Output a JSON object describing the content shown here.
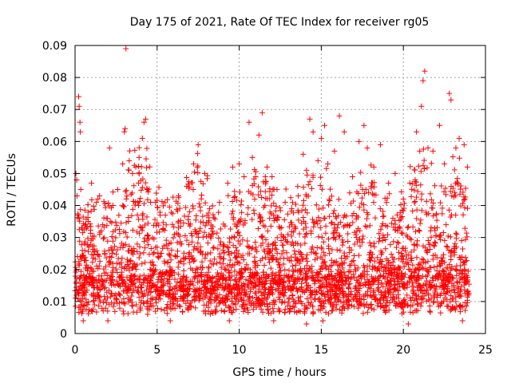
{
  "chart_data": {
    "type": "scatter",
    "title": "Day 175 of 2021, Rate Of TEC Index for receiver rg05",
    "xlabel": "GPS time / hours",
    "ylabel": "ROTI / TECUs",
    "xlim": [
      0,
      25
    ],
    "ylim": [
      0,
      0.09
    ],
    "xticks": [
      0,
      5,
      10,
      15,
      20,
      25
    ],
    "xtick_labels": [
      "0",
      "5",
      "10",
      "15",
      "20",
      "25"
    ],
    "yticks": [
      0,
      0.01,
      0.02,
      0.03,
      0.04,
      0.05,
      0.06,
      0.07,
      0.08,
      0.09
    ],
    "ytick_labels": [
      "0",
      "0.01",
      "0.02",
      "0.03",
      "0.04",
      "0.05",
      "0.06",
      "0.07",
      "0.08",
      "0.09"
    ],
    "grid": true,
    "marker": "+",
    "color": "#ff0000",
    "data_x_range": [
      0,
      24
    ],
    "series": [
      {
        "name": "ROTI",
        "points": [
          [
            0.05,
            0.05
          ],
          [
            0.1,
            0.048
          ],
          [
            0.12,
            0.043
          ],
          [
            0.2,
            0.037
          ],
          [
            0.22,
            0.074
          ],
          [
            0.25,
            0.071
          ],
          [
            0.3,
            0.066
          ],
          [
            0.32,
            0.063
          ],
          [
            0.35,
            0.045
          ],
          [
            0.4,
            0.033
          ],
          [
            0.8,
            0.035
          ],
          [
            1.0,
            0.047
          ],
          [
            1.3,
            0.041
          ],
          [
            1.5,
            0.031
          ],
          [
            1.9,
            0.036
          ],
          [
            2.1,
            0.058
          ],
          [
            2.3,
            0.04
          ],
          [
            2.6,
            0.045
          ],
          [
            2.9,
            0.053
          ],
          [
            3.0,
            0.063
          ],
          [
            3.05,
            0.064
          ],
          [
            3.1,
            0.089
          ],
          [
            3.3,
            0.054
          ],
          [
            3.5,
            0.05
          ],
          [
            3.7,
            0.052
          ],
          [
            3.9,
            0.055
          ],
          [
            4.1,
            0.061
          ],
          [
            4.2,
            0.066
          ],
          [
            4.3,
            0.067
          ],
          [
            4.4,
            0.045
          ],
          [
            4.6,
            0.041
          ],
          [
            5.5,
            0.037
          ],
          [
            6.3,
            0.043
          ],
          [
            6.8,
            0.046
          ],
          [
            7.2,
            0.045
          ],
          [
            7.5,
            0.059
          ],
          [
            7.9,
            0.05
          ],
          [
            8.2,
            0.039
          ],
          [
            8.8,
            0.041
          ],
          [
            9.3,
            0.047
          ],
          [
            9.6,
            0.052
          ],
          [
            10.0,
            0.053
          ],
          [
            10.3,
            0.049
          ],
          [
            10.6,
            0.066
          ],
          [
            10.8,
            0.055
          ],
          [
            11.0,
            0.049
          ],
          [
            11.2,
            0.062
          ],
          [
            11.4,
            0.069
          ],
          [
            11.7,
            0.052
          ],
          [
            12.0,
            0.049
          ],
          [
            12.3,
            0.045
          ],
          [
            12.8,
            0.041
          ],
          [
            13.2,
            0.039
          ],
          [
            13.6,
            0.043
          ],
          [
            13.9,
            0.056
          ],
          [
            14.1,
            0.051
          ],
          [
            14.3,
            0.067
          ],
          [
            14.5,
            0.063
          ],
          [
            14.8,
            0.054
          ],
          [
            15.0,
            0.061
          ],
          [
            15.2,
            0.065
          ],
          [
            15.4,
            0.053
          ],
          [
            15.8,
            0.057
          ],
          [
            16.1,
            0.068
          ],
          [
            16.4,
            0.063
          ],
          [
            16.9,
            0.049
          ],
          [
            17.3,
            0.06
          ],
          [
            17.6,
            0.065
          ],
          [
            17.8,
            0.058
          ],
          [
            18.2,
            0.052
          ],
          [
            18.6,
            0.059
          ],
          [
            19.1,
            0.047
          ],
          [
            19.5,
            0.05
          ],
          [
            20.0,
            0.042
          ],
          [
            20.4,
            0.047
          ],
          [
            20.8,
            0.063
          ],
          [
            21.0,
            0.057
          ],
          [
            21.1,
            0.071
          ],
          [
            21.2,
            0.079
          ],
          [
            21.3,
            0.082
          ],
          [
            21.5,
            0.058
          ],
          [
            21.8,
            0.057
          ],
          [
            22.2,
            0.065
          ],
          [
            22.5,
            0.053
          ],
          [
            22.8,
            0.075
          ],
          [
            22.9,
            0.073
          ],
          [
            23.2,
            0.058
          ],
          [
            23.4,
            0.061
          ],
          [
            23.7,
            0.059
          ],
          [
            23.9,
            0.052
          ],
          [
            0.5,
            0.004
          ],
          [
            2.0,
            0.004
          ],
          [
            5.8,
            0.004
          ],
          [
            9.4,
            0.004
          ],
          [
            12.1,
            0.004
          ],
          [
            14.1,
            0.003
          ],
          [
            15.1,
            0.004
          ],
          [
            20.3,
            0.003
          ],
          [
            23.6,
            0.004
          ]
        ]
      }
    ]
  }
}
